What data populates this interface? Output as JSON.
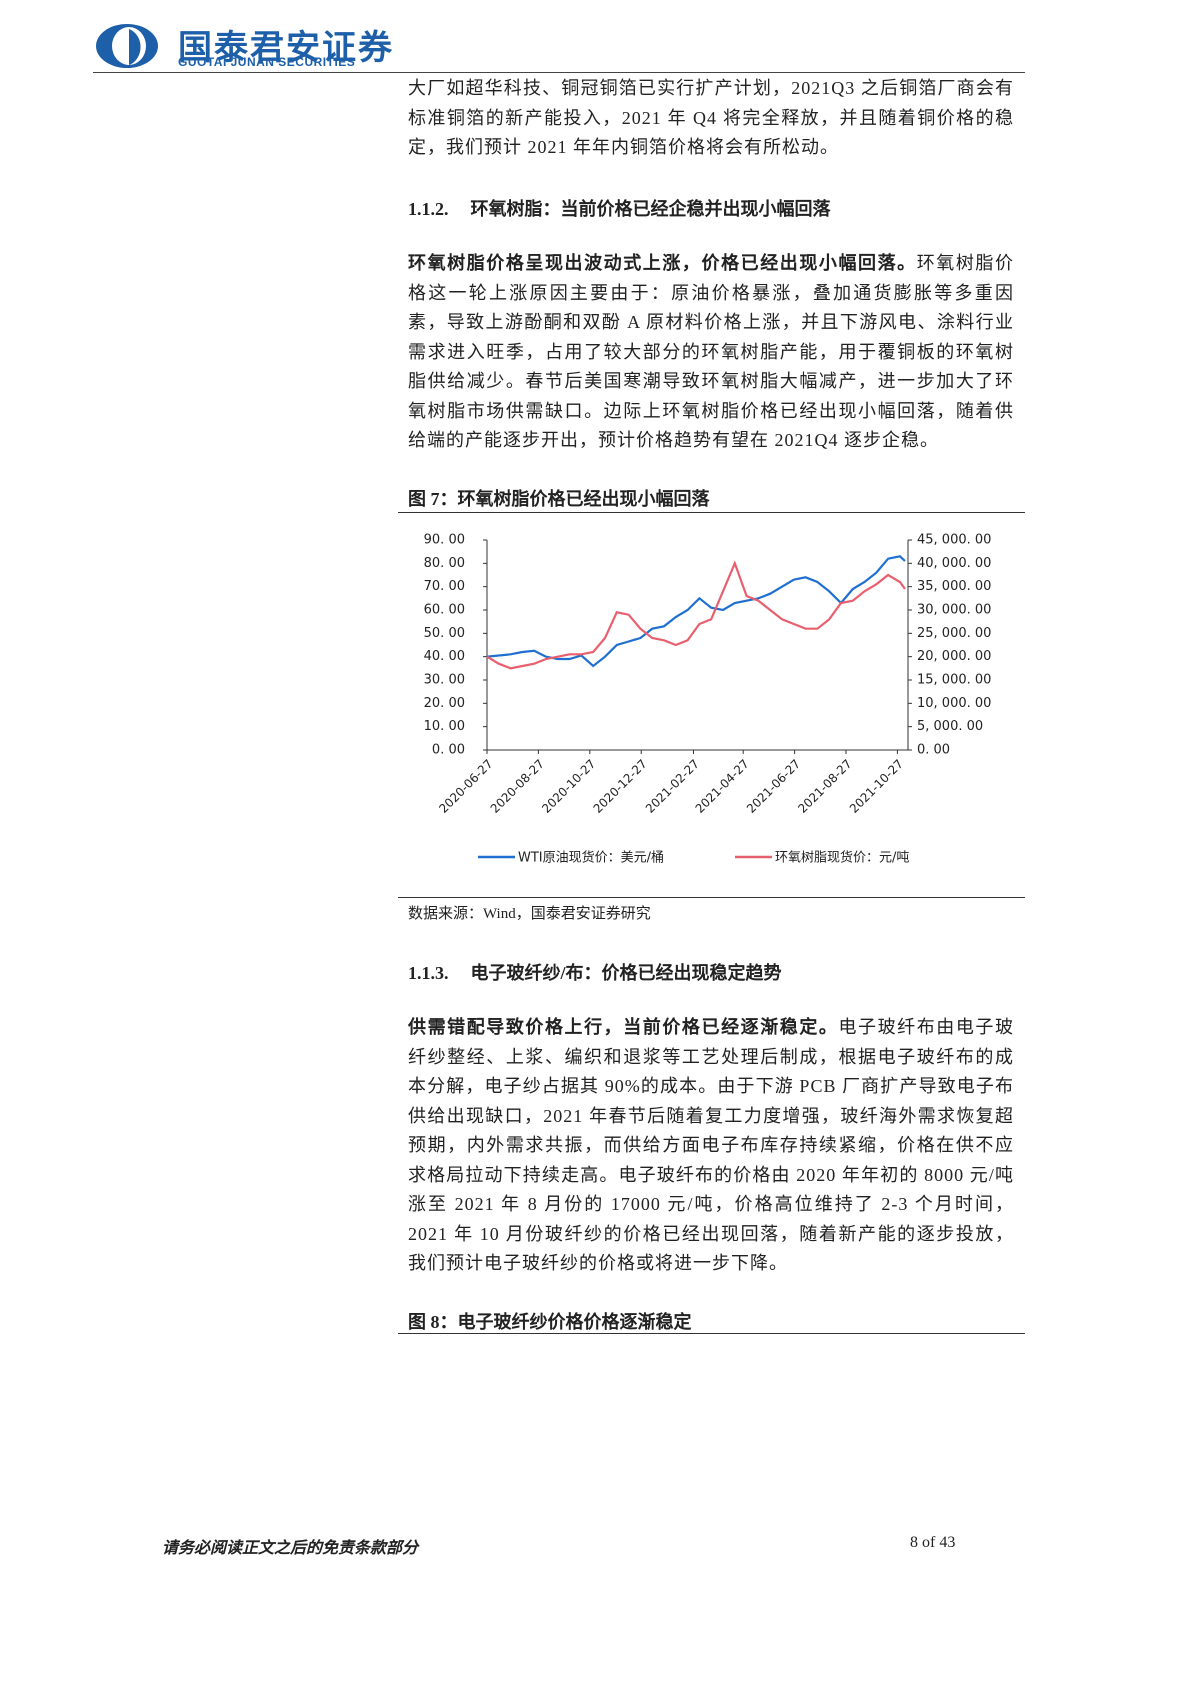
{
  "header": {
    "brand": "国泰君安证券",
    "brand_en": "GUOTAI JUNAN SECURITIES"
  },
  "body": {
    "p1": "大厂如超华科技、铜冠铜箔已实行扩产计划，2021Q3 之后铜箔厂商会有标准铜箔的新产能投入，2021 年 Q4 将完全释放，并且随着铜价格的稳定，我们预计 2021 年年内铜箔价格将会有所松动。",
    "h112": {
      "num": "1.1.2.",
      "text": "环氧树脂：当前价格已经企稳并出现小幅回落"
    },
    "p2": {
      "lead": "环氧树脂价格呈现出波动式上涨，价格已经出现小幅回落。",
      "text": "环氧树脂价格这一轮上涨原因主要由于：原油价格暴涨，叠加通货膨胀等多重因素，导致上游酚酮和双酚 A 原材料价格上涨，并且下游风电、涂料行业需求进入旺季，占用了较大部分的环氧树脂产能，用于覆铜板的环氧树脂供给减少。春节后美国寒潮导致环氧树脂大幅减产，进一步加大了环氧树脂市场供需缺口。边际上环氧树脂价格已经出现小幅回落，随着供给端的产能逐步开出，预计价格趋势有望在 2021Q4 逐步企稳。"
    },
    "fig7": {
      "title": "图 7：环氧树脂价格已经出现小幅回落",
      "source": "数据来源：Wind，国泰君安证券研究"
    },
    "h113": {
      "num": "1.1.3.",
      "text": "电子玻纤纱/布：价格已经出现稳定趋势"
    },
    "p3": {
      "lead": "供需错配导致价格上行，当前价格已经逐渐稳定。",
      "text": "电子玻纤布由电子玻纤纱整经、上浆、编织和退浆等工艺处理后制成，根据电子玻纤布的成本分解，电子纱占据其 90%的成本。由于下游 PCB 厂商扩产导致电子布供给出现缺口，2021 年春节后随着复工力度增强，玻纤海外需求恢复超预期，内外需求共振，而供给方面电子布库存持续紧缩，价格在供不应求格局拉动下持续走高。电子玻纤布的价格由 2020 年年初的 8000 元/吨涨至 2021 年 8 月份的 17000 元/吨，价格高位维持了 2-3 个月时间，2021 年 10 月份玻纤纱的价格已经出现回落，随着新产能的逐步投放，我们预计电子玻纤纱的价格或将进一步下降。"
    },
    "fig8": {
      "title": "图 8：电子玻纤纱价格价格逐渐稳定"
    }
  },
  "footer": {
    "disclaimer": "请务必阅读正文之后的免责条款部分",
    "page": "8 of 43"
  },
  "chart_data": {
    "type": "line",
    "x": [
      "2020-06-27",
      "2020-07-11",
      "2020-07-25",
      "2020-08-08",
      "2020-08-22",
      "2020-09-05",
      "2020-09-19",
      "2020-10-03",
      "2020-10-17",
      "2020-10-31",
      "2020-11-14",
      "2020-11-28",
      "2020-12-12",
      "2020-12-26",
      "2021-01-09",
      "2021-01-23",
      "2021-02-06",
      "2021-02-20",
      "2021-03-06",
      "2021-03-20",
      "2021-04-03",
      "2021-04-17",
      "2021-05-01",
      "2021-05-15",
      "2021-05-29",
      "2021-06-12",
      "2021-06-26",
      "2021-07-10",
      "2021-07-24",
      "2021-08-07",
      "2021-08-21",
      "2021-09-04",
      "2021-09-18",
      "2021-10-02",
      "2021-10-16",
      "2021-10-30",
      "2021-11-05"
    ],
    "xticks": [
      "2020-06-27",
      "2020-08-27",
      "2020-10-27",
      "2020-12-27",
      "2021-02-27",
      "2021-04-27",
      "2021-06-27",
      "2021-08-27",
      "2021-10-27"
    ],
    "series": [
      {
        "name": "WTI原油现货价：美元/桶",
        "color": "#1f6fd1",
        "values": [
          40,
          40.5,
          41,
          42,
          42.5,
          40,
          39,
          39,
          40.5,
          36,
          40,
          45,
          46.5,
          48,
          52,
          53,
          57,
          60,
          65,
          61,
          60,
          63,
          64,
          65,
          67,
          70,
          73,
          74,
          72,
          68,
          63,
          69,
          72,
          76,
          82,
          83,
          81
        ]
      },
      {
        "name": "环氧树脂现货价：元/吨",
        "color": "#e8606e",
        "axis": "y2",
        "values": [
          20000,
          18500,
          17500,
          18000,
          18500,
          19500,
          20000,
          20500,
          20500,
          21000,
          24000,
          29500,
          29000,
          26000,
          24000,
          23500,
          22500,
          23500,
          27000,
          28000,
          34000,
          40000,
          33000,
          32000,
          30000,
          28000,
          27000,
          26000,
          26000,
          28000,
          31500,
          32000,
          34000,
          35500,
          37500,
          36000,
          34500
        ]
      }
    ],
    "ylim": [
      0,
      90
    ],
    "yticks": [
      {
        "value": 0,
        "label": "0. 00"
      },
      {
        "value": 10,
        "label": "10. 00"
      },
      {
        "value": 20,
        "label": "20. 00"
      },
      {
        "value": 30,
        "label": "30. 00"
      },
      {
        "value": 40,
        "label": "40. 00"
      },
      {
        "value": 50,
        "label": "50. 00"
      },
      {
        "value": 60,
        "label": "60. 00"
      },
      {
        "value": 70,
        "label": "70. 00"
      },
      {
        "value": 80,
        "label": "80. 00"
      },
      {
        "value": 90,
        "label": "90. 00"
      }
    ],
    "y2lim": [
      0,
      45000
    ],
    "y2ticks": [
      {
        "value": 0,
        "label": "0. 00"
      },
      {
        "value": 5000,
        "label": "5, 000. 00"
      },
      {
        "value": 10000,
        "label": "10, 000. 00"
      },
      {
        "value": 15000,
        "label": "15, 000. 00"
      },
      {
        "value": 20000,
        "label": "20, 000. 00"
      },
      {
        "value": 25000,
        "label": "25, 000. 00"
      },
      {
        "value": 30000,
        "label": "30, 000. 00"
      },
      {
        "value": 35000,
        "label": "35, 000. 00"
      },
      {
        "value": 40000,
        "label": "40, 000. 00"
      },
      {
        "value": 45000,
        "label": "45, 000. 00"
      }
    ],
    "grid": false
  }
}
